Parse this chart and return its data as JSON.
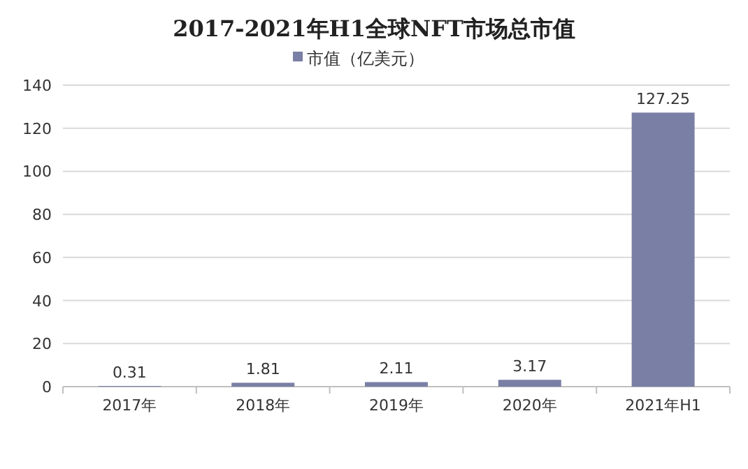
{
  "chart_data": {
    "type": "bar",
    "title": "2017-2021年H1全球NFT市场总市值",
    "categories": [
      "2017年",
      "2018年",
      "2019年",
      "2020年",
      "2021年H1"
    ],
    "series": [
      {
        "name": "市值（亿美元）",
        "color": "#7a7fa6",
        "values": [
          0.31,
          1.81,
          2.11,
          3.17,
          127.25
        ]
      }
    ],
    "ylim": [
      0,
      140
    ],
    "yticks": [
      0,
      20,
      40,
      60,
      80,
      100,
      120,
      140
    ],
    "grid": "y",
    "legend": "top",
    "data_labels": true
  }
}
